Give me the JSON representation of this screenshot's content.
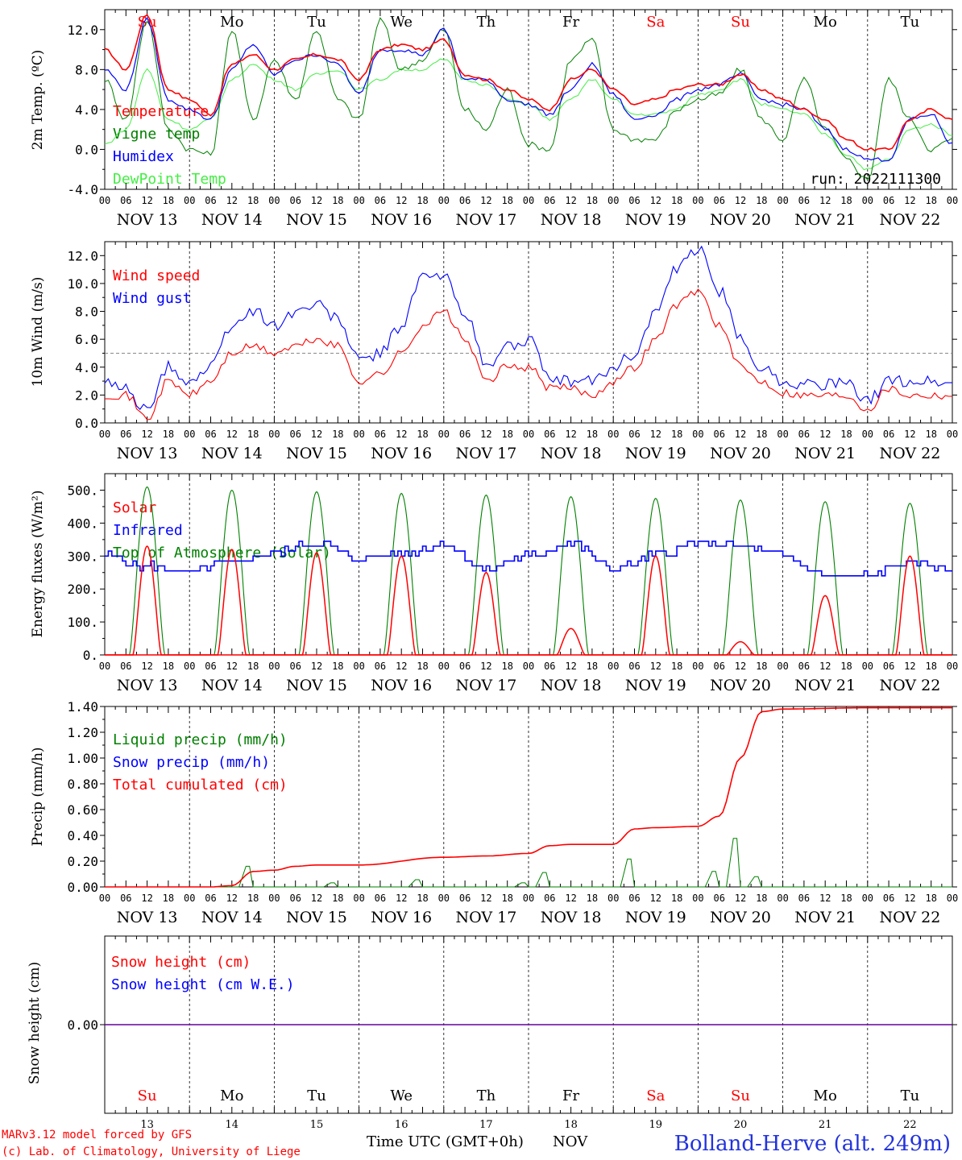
{
  "days": [
    "NOV 13",
    "NOV 14",
    "NOV 15",
    "NOV 16",
    "NOV 17",
    "NOV 18",
    "NOV 19",
    "NOV 20",
    "NOV 21",
    "NOV 22"
  ],
  "weekdays": [
    "Su",
    "Mo",
    "Tu",
    "We",
    "Th",
    "Fr",
    "Sa",
    "Su",
    "Mo",
    "Tu"
  ],
  "weekday_colors": [
    "#ff0000",
    "#000000",
    "#000000",
    "#000000",
    "#000000",
    "#000000",
    "#ff0000",
    "#ff0000",
    "#000000",
    "#000000"
  ],
  "day_numbers": [
    "13",
    "14",
    "15",
    "16",
    "17",
    "18",
    "19",
    "20",
    "21",
    "22"
  ],
  "hour_ticks": [
    "00",
    "06",
    "12",
    "18"
  ],
  "hour_end": "00",
  "footer": {
    "model_line1": "MARv3.12 model forced by GFS",
    "model_line2": "(c) Lab. of Climatology, University of Liege",
    "time_label": "Time UTC (GMT+0h)",
    "month": "NOV",
    "station": "Bolland-Herve (alt. 249m)"
  },
  "chart_data": [
    {
      "type": "line",
      "ylabel": "2m Temp. (ºC)",
      "ylim": [
        -4,
        14
      ],
      "yticks": [
        "-4.0",
        "0.0",
        "4.0",
        "8.0",
        "12.0"
      ],
      "run_label": "run: 2022111300",
      "series": [
        {
          "name": "Temperature",
          "color": "#ff0000",
          "x": [
            0,
            6,
            12,
            18,
            24,
            30,
            36,
            42,
            48,
            54,
            60,
            66,
            72,
            78,
            84,
            90,
            96,
            102,
            108,
            114,
            120,
            126,
            132,
            138,
            144,
            150,
            156,
            162,
            168,
            174,
            180,
            186,
            192,
            198,
            204,
            210,
            216,
            222,
            228,
            234,
            240
          ],
          "y": [
            10,
            8,
            13.5,
            6,
            5,
            3.5,
            8.5,
            9.5,
            8,
            9,
            9.5,
            9,
            7,
            10,
            10.5,
            10,
            11,
            7.5,
            7,
            6,
            5,
            4,
            7,
            8,
            6,
            4.5,
            5,
            6,
            6.5,
            6.5,
            7.5,
            6,
            5,
            4,
            3,
            1,
            0,
            0,
            3,
            4,
            3
          ]
        },
        {
          "name": "Vigne temp",
          "color": "#008000",
          "x": [
            0,
            6,
            12,
            18,
            24,
            30,
            36,
            42,
            48,
            54,
            60,
            66,
            72,
            78,
            84,
            90,
            96,
            102,
            108,
            114,
            120,
            126,
            132,
            138,
            144,
            150,
            156,
            162,
            168,
            174,
            180,
            186,
            192,
            198,
            204,
            210,
            216,
            222,
            228,
            234,
            240
          ],
          "y": [
            7,
            3,
            13,
            2,
            0,
            -0.5,
            12,
            3,
            9,
            5,
            12,
            5,
            3,
            13,
            8,
            9,
            12,
            4,
            2,
            6,
            0.5,
            0,
            9,
            11,
            2,
            1,
            1,
            4,
            5,
            5.5,
            8,
            3,
            1,
            7,
            2,
            -1,
            -3,
            7,
            3,
            0,
            1
          ]
        },
        {
          "name": "Humidex",
          "color": "#0000ff",
          "x": [
            0,
            6,
            12,
            18,
            24,
            30,
            36,
            42,
            48,
            54,
            60,
            66,
            72,
            78,
            84,
            90,
            96,
            102,
            108,
            114,
            120,
            126,
            132,
            138,
            144,
            150,
            156,
            162,
            168,
            174,
            180,
            186,
            192,
            198,
            204,
            210,
            216,
            222,
            228,
            234,
            240
          ],
          "y": [
            8,
            6,
            13,
            5,
            4,
            3,
            8,
            10.5,
            7.5,
            9,
            9.5,
            8.5,
            5.5,
            10,
            10,
            9.5,
            12,
            7,
            7,
            5,
            4.5,
            3.5,
            6,
            8.5,
            5.5,
            3,
            3.5,
            5,
            6,
            6.5,
            7.5,
            5,
            4.5,
            4,
            2,
            0,
            -1,
            -1,
            3,
            3.5,
            0.5
          ]
        },
        {
          "name": "DewPoint Temp",
          "color": "#44ee44",
          "x": [
            0,
            6,
            12,
            18,
            24,
            30,
            36,
            42,
            48,
            54,
            60,
            66,
            72,
            78,
            84,
            90,
            96,
            102,
            108,
            114,
            120,
            126,
            132,
            138,
            144,
            150,
            156,
            162,
            168,
            174,
            180,
            186,
            192,
            198,
            204,
            210,
            216,
            222,
            228,
            234,
            240
          ],
          "y": [
            0.5,
            2,
            8,
            3,
            2,
            3,
            7,
            8.5,
            7,
            6,
            7.5,
            8,
            6,
            7,
            8,
            8,
            9,
            7,
            6.5,
            5,
            4.5,
            3,
            5,
            7,
            5,
            3.5,
            3.5,
            4,
            5.5,
            6,
            7,
            4.5,
            4,
            3.5,
            1.5,
            -0.5,
            -2,
            -1,
            2,
            2.5,
            1.5
          ]
        }
      ]
    },
    {
      "type": "line",
      "ylabel": "10m Wind (m/s)",
      "ylim": [
        0,
        13
      ],
      "yticks": [
        "0.0",
        "2.0",
        "4.0",
        "6.0",
        "8.0",
        "10.0",
        "12.0"
      ],
      "dashed_line": 5,
      "series": [
        {
          "name": "Wind speed",
          "color": "#ff0000",
          "x": [
            0,
            6,
            12,
            18,
            24,
            30,
            36,
            42,
            48,
            54,
            60,
            66,
            72,
            78,
            84,
            90,
            96,
            102,
            108,
            114,
            120,
            126,
            132,
            138,
            144,
            150,
            156,
            162,
            168,
            174,
            180,
            186,
            192,
            198,
            204,
            210,
            216,
            222,
            228,
            234,
            240
          ],
          "y": [
            2,
            2,
            0.3,
            3,
            2,
            3,
            5,
            5.5,
            5,
            5.5,
            6,
            5.5,
            3,
            3.5,
            5,
            7,
            8,
            6,
            3,
            4,
            4,
            2.5,
            2.5,
            2,
            3,
            4,
            6,
            8.5,
            9.5,
            7,
            4,
            3,
            2.2,
            2,
            2,
            2,
            1,
            2.5,
            2,
            2,
            2
          ]
        },
        {
          "name": "Wind gust",
          "color": "#0000ff",
          "x": [
            0,
            6,
            12,
            18,
            24,
            30,
            36,
            42,
            48,
            54,
            60,
            66,
            72,
            78,
            84,
            90,
            96,
            102,
            108,
            114,
            120,
            126,
            132,
            138,
            144,
            150,
            156,
            162,
            168,
            174,
            180,
            186,
            192,
            198,
            204,
            210,
            216,
            222,
            228,
            234,
            240
          ],
          "y": [
            2.8,
            2.5,
            0.8,
            4,
            3,
            4,
            7,
            8,
            7,
            8,
            8.5,
            7.5,
            4.5,
            5,
            7,
            10.5,
            10.5,
            8,
            4,
            5.5,
            6,
            3,
            3,
            3,
            4,
            5,
            8,
            11,
            12.5,
            9.5,
            6,
            4,
            3,
            2.8,
            2.8,
            2.8,
            1.5,
            3,
            3,
            3,
            2.8
          ]
        }
      ]
    },
    {
      "type": "line",
      "ylabel": "Energy fluxes (W/m²)",
      "ylim": [
        0,
        550
      ],
      "yticks": [
        "0.",
        "100.",
        "200.",
        "300.",
        "400.",
        "500."
      ],
      "series": [
        {
          "name": "Solar",
          "color": "#ff0000",
          "peaks": [
            330,
            320,
            310,
            300,
            250,
            80,
            300,
            40,
            180,
            300
          ]
        },
        {
          "name": "Infrared",
          "color": "#0000ff",
          "x": [
            0,
            12,
            24,
            36,
            48,
            60,
            72,
            84,
            96,
            108,
            120,
            132,
            144,
            156,
            168,
            180,
            192,
            204,
            216,
            228,
            240
          ],
          "y": [
            300,
            270,
            250,
            280,
            310,
            340,
            290,
            310,
            340,
            260,
            300,
            340,
            260,
            300,
            340,
            330,
            300,
            240,
            240,
            280,
            260
          ]
        },
        {
          "name": "Top of Atmosphere (Solar)",
          "color": "#008000",
          "peaks": [
            510,
            500,
            495,
            490,
            485,
            480,
            475,
            470,
            465,
            460
          ]
        }
      ]
    },
    {
      "type": "line",
      "ylabel": "Precip (mm/h)",
      "ylim": [
        0,
        1.4
      ],
      "yticks": [
        "0.00",
        "0.20",
        "0.40",
        "0.60",
        "0.80",
        "1.00",
        "1.20",
        "1.40"
      ],
      "series": [
        {
          "name": "Liquid precip (mm/h)",
          "color": "#008000",
          "x": [
            0,
            30,
            36,
            42,
            48,
            54,
            60,
            66,
            72,
            78,
            84,
            90,
            96,
            102,
            108,
            114,
            120,
            126,
            132,
            138,
            144,
            150,
            156,
            162,
            168,
            174,
            180,
            186,
            192,
            198,
            204,
            210,
            216,
            222,
            228,
            234,
            240
          ],
          "y": [
            0,
            0,
            0,
            0.2,
            0,
            0,
            0,
            0.04,
            0,
            0,
            0,
            0.07,
            0,
            0,
            0,
            0,
            0.04,
            0.14,
            0,
            0,
            0,
            0.27,
            0,
            0,
            0,
            0.15,
            0.47,
            0.1,
            0,
            0,
            0,
            0,
            0,
            0,
            0,
            0,
            0
          ]
        },
        {
          "name": "Snow precip (mm/h)",
          "color": "#0000ff",
          "x": [
            0,
            240
          ],
          "y": [
            0,
            0
          ]
        },
        {
          "name": "Total cumulated (cm)",
          "color": "#ff0000",
          "x": [
            0,
            30,
            36,
            42,
            48,
            54,
            60,
            72,
            96,
            108,
            120,
            126,
            132,
            144,
            150,
            156,
            168,
            174,
            180,
            186,
            192,
            216,
            240
          ],
          "y": [
            0,
            0,
            0.01,
            0.12,
            0.13,
            0.16,
            0.17,
            0.17,
            0.23,
            0.24,
            0.26,
            0.32,
            0.33,
            0.33,
            0.45,
            0.46,
            0.47,
            0.55,
            1.0,
            1.36,
            1.38,
            1.39,
            1.39
          ]
        }
      ]
    },
    {
      "type": "line",
      "ylabel": "Snow height (cm)",
      "yticks": [
        "0.00"
      ],
      "series": [
        {
          "name": "Snow height (cm)",
          "color": "#ff0000",
          "x": [
            0,
            240
          ],
          "y": [
            0,
            0
          ]
        },
        {
          "name": "Snow height (cm W.E.)",
          "color": "#0000ff",
          "x": [
            0,
            240
          ],
          "y": [
            0,
            0
          ]
        }
      ]
    }
  ]
}
